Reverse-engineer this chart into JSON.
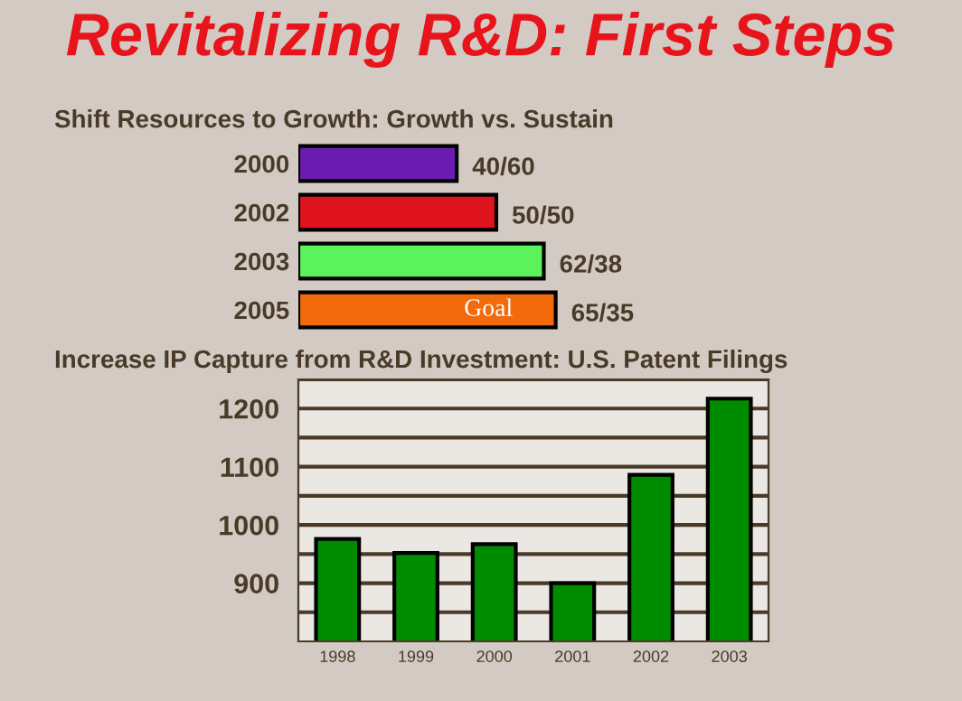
{
  "chart_data": [
    {
      "type": "bar",
      "title": "Revitalizing R&D: First Steps",
      "subtitle": "Shift Resources to Growth: Growth vs. Sustain",
      "orientation": "horizontal",
      "categories": [
        "2000",
        "2002",
        "2003",
        "2005"
      ],
      "values": [
        40,
        50,
        62,
        65
      ],
      "colors": [
        "#6a1cb0",
        "#e0141e",
        "#5cf25c",
        "#f26a0c"
      ],
      "value_labels": [
        "40/60",
        "50/50",
        "62/38",
        "65/35"
      ],
      "annotations": [
        {
          "text": "Goal",
          "x": 48,
          "y": "2005"
        }
      ],
      "grid": false,
      "legend": false
    },
    {
      "type": "bar",
      "title": "Increase IP Capture from R&D Investment: U.S. Patent Filings",
      "categories": [
        "1998",
        "1999",
        "2000",
        "2001",
        "2002",
        "2003"
      ],
      "values": [
        976,
        952,
        967,
        900,
        1086,
        1217
      ],
      "color": "#008c00",
      "ylim": [
        800,
        1250
      ],
      "yticks": [
        {
          "value": 850,
          "label": null
        },
        900,
        {
          "value": 950,
          "label": null
        },
        1000,
        {
          "value": 1050,
          "label": null
        },
        1100,
        {
          "value": 1150,
          "label": null
        },
        1200,
        {
          "value": 1250,
          "label": null
        }
      ],
      "grid": "y",
      "legend": false
    }
  ]
}
